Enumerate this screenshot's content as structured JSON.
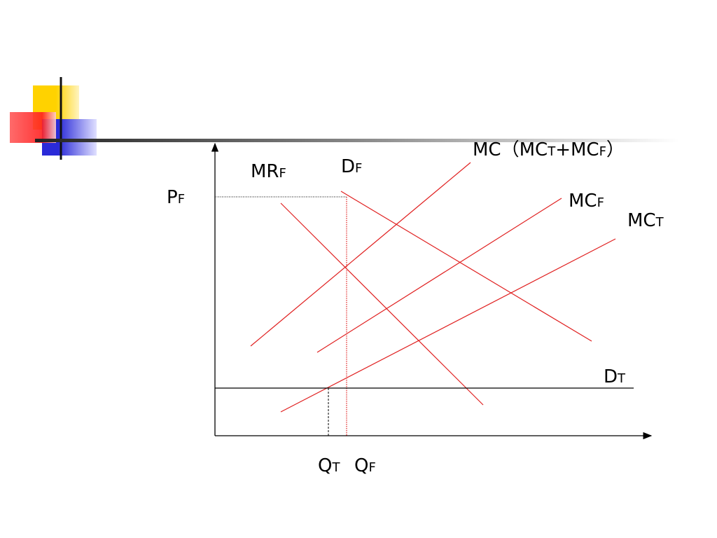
{
  "labels": {
    "mc_total": {
      "parts": [
        {
          "text": "MC（MC"
        },
        {
          "sub": "T"
        },
        {
          "text": "+MC"
        },
        {
          "sub": "F"
        },
        {
          "text": "）"
        }
      ]
    },
    "mr_f": {
      "parts": [
        {
          "text": "MR"
        },
        {
          "sub": "F"
        }
      ]
    },
    "d_f": {
      "parts": [
        {
          "text": "D"
        },
        {
          "sub": "F"
        }
      ]
    },
    "p_f": {
      "parts": [
        {
          "text": "P"
        },
        {
          "sub": "F"
        }
      ]
    },
    "mc_f": {
      "parts": [
        {
          "text": "MC"
        },
        {
          "sub": "F"
        }
      ]
    },
    "mc_t": {
      "parts": [
        {
          "text": "MC"
        },
        {
          "sub": "T"
        }
      ]
    },
    "d_t": {
      "parts": [
        {
          "text": "D"
        },
        {
          "sub": "T"
        }
      ]
    },
    "q_t": {
      "parts": [
        {
          "text": "Q"
        },
        {
          "sub": "T"
        }
      ]
    },
    "q_f": {
      "parts": [
        {
          "text": "Q"
        },
        {
          "sub": "F"
        }
      ]
    }
  }
}
